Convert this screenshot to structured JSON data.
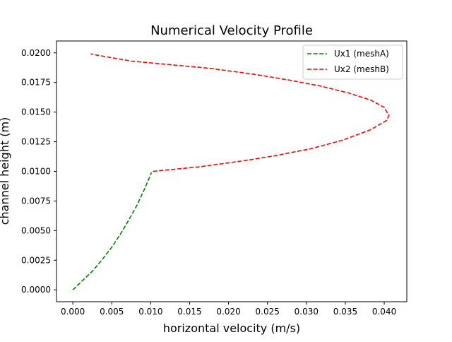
{
  "chart_data": {
    "type": "line",
    "title": "Numerical Velocity Profile",
    "xlabel": "horizontal velocity (m/s)",
    "ylabel": "channel height (m)",
    "xlim": [
      -0.0021,
      0.0429
    ],
    "ylim": [
      -0.001,
      0.021
    ],
    "x_ticks": [
      0.0,
      0.005,
      0.01,
      0.015,
      0.02,
      0.025,
      0.03,
      0.035,
      0.04
    ],
    "x_tick_labels": [
      "0.000",
      "0.005",
      "0.010",
      "0.015",
      "0.020",
      "0.025",
      "0.030",
      "0.035",
      "0.040"
    ],
    "y_ticks": [
      0.0,
      0.0025,
      0.005,
      0.0075,
      0.01,
      0.0125,
      0.015,
      0.0175,
      0.02
    ],
    "y_tick_labels": [
      "0.0000",
      "0.0025",
      "0.0050",
      "0.0075",
      "0.0100",
      "0.0125",
      "0.0150",
      "0.0175",
      "0.0200"
    ],
    "grid": false,
    "legend_position": "top-right",
    "series": [
      {
        "name": "Ux1 (meshA)",
        "color": "#008000",
        "line_style": "dashed",
        "points": [
          [
            0.0,
            0.0
          ],
          [
            0.0011,
            0.0007
          ],
          [
            0.0024,
            0.0015
          ],
          [
            0.0037,
            0.0025
          ],
          [
            0.005,
            0.0036
          ],
          [
            0.0061,
            0.0047
          ],
          [
            0.0071,
            0.0058
          ],
          [
            0.0082,
            0.0071
          ],
          [
            0.0092,
            0.0085
          ],
          [
            0.0101,
            0.0099
          ]
        ]
      },
      {
        "name": "Ux2 (meshB)",
        "color": "#ff0000",
        "line_style": "dashed",
        "points": [
          [
            0.0103,
            0.01
          ],
          [
            0.0165,
            0.0104
          ],
          [
            0.022,
            0.0109
          ],
          [
            0.0258,
            0.0113
          ],
          [
            0.0305,
            0.0119
          ],
          [
            0.0345,
            0.0126
          ],
          [
            0.0382,
            0.0135
          ],
          [
            0.0403,
            0.0143
          ],
          [
            0.0406,
            0.0147
          ],
          [
            0.04,
            0.0154
          ],
          [
            0.0383,
            0.016
          ],
          [
            0.0355,
            0.0166
          ],
          [
            0.0318,
            0.0172
          ],
          [
            0.0278,
            0.0177
          ],
          [
            0.0232,
            0.0182
          ],
          [
            0.0175,
            0.0187
          ],
          [
            0.0125,
            0.019
          ],
          [
            0.0075,
            0.0193
          ],
          [
            0.0023,
            0.0199
          ]
        ]
      }
    ]
  }
}
